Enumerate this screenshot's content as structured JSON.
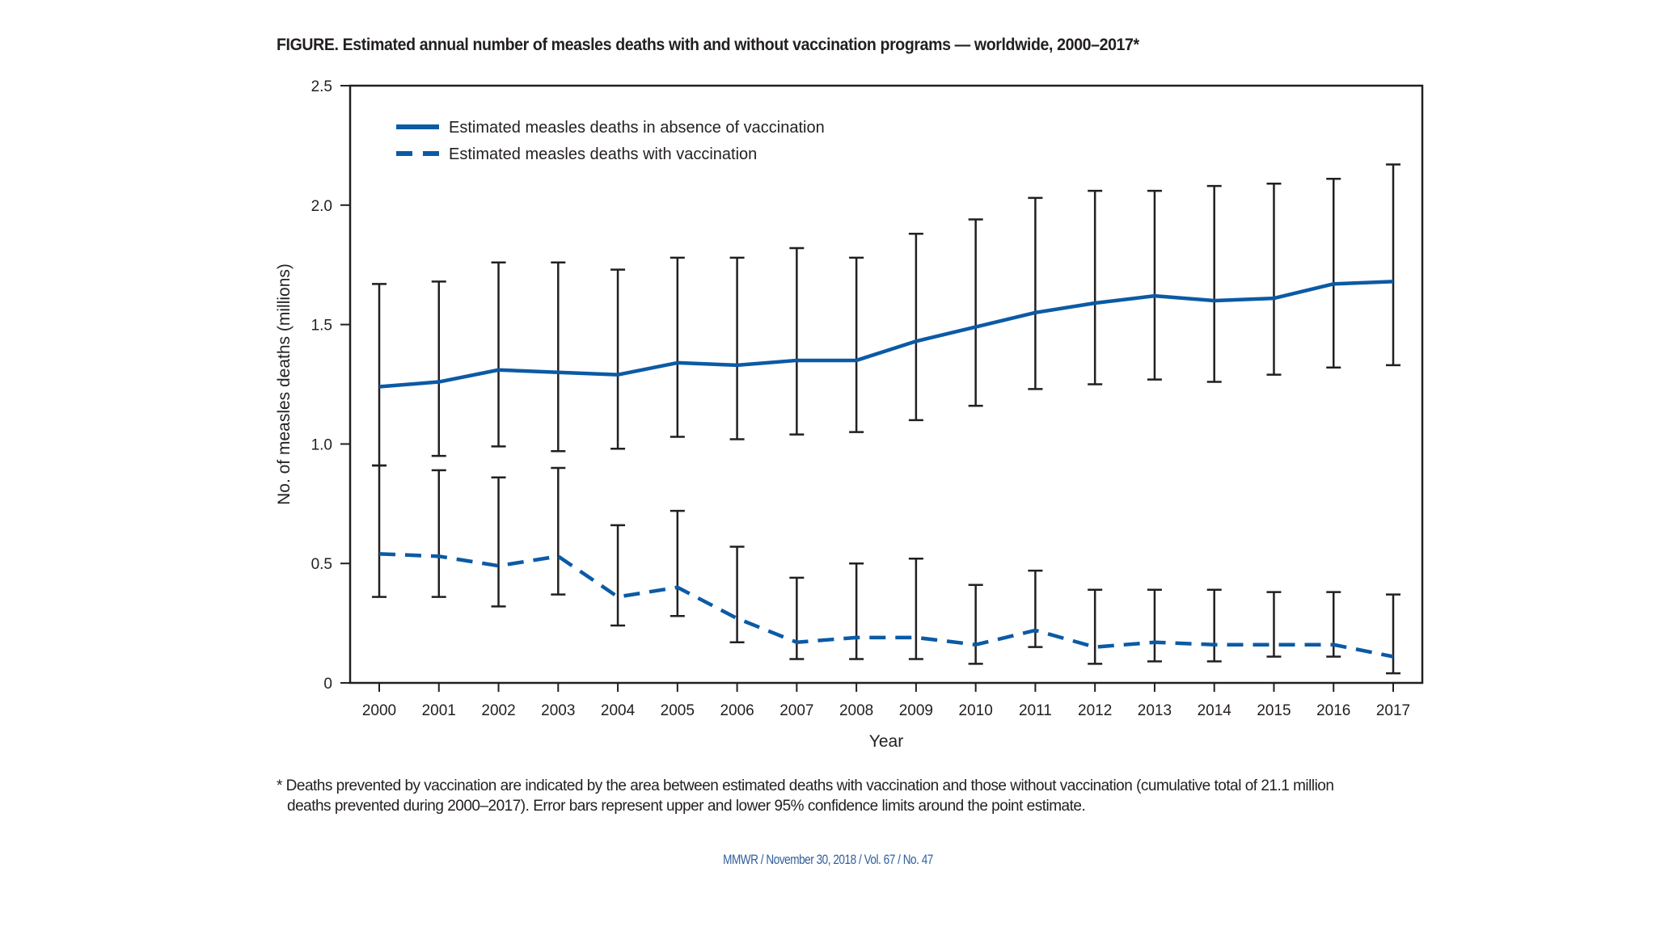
{
  "figure": {
    "title": "FIGURE. Estimated annual number of measles deaths with and without vaccination programs — worldwide, 2000–2017*",
    "footnote_line1": "* Deaths prevented by vaccination are indicated by the area between estimated deaths with vaccination and those without vaccination (cumulative total of 21.1 million",
    "footnote_line2": "deaths prevented during 2000–2017). Error bars represent upper and lower 95% confidence limits around the point estimate.",
    "footer": "MMWR / November 30, 2018 / Vol. 67 / No. 47"
  },
  "colors": {
    "series": "#0b5aa5",
    "axis": "#231f20",
    "errorbar": "#231f20"
  },
  "chart_data": {
    "type": "line",
    "title": "Estimated annual number of measles deaths with and without vaccination programs — worldwide, 2000–2017",
    "xlabel": "Year",
    "ylabel": "No. of measles deaths (millions)",
    "ylim": [
      0,
      2.5
    ],
    "yticks": [
      0,
      0.5,
      1.0,
      1.5,
      2.0,
      2.5
    ],
    "ytick_labels": [
      "0",
      "0.5",
      "1.0",
      "1.5",
      "2.0",
      "2.5"
    ],
    "grid": false,
    "legend_position": "top-left",
    "x": [
      "2000",
      "2001",
      "2002",
      "2003",
      "2004",
      "2005",
      "2006",
      "2007",
      "2008",
      "2009",
      "2010",
      "2011",
      "2012",
      "2013",
      "2014",
      "2015",
      "2016",
      "2017"
    ],
    "series": [
      {
        "name": "Estimated measles deaths in absence of vaccination",
        "style": "solid",
        "values": [
          1.24,
          1.26,
          1.31,
          1.3,
          1.29,
          1.34,
          1.33,
          1.35,
          1.35,
          1.43,
          1.49,
          1.55,
          1.59,
          1.62,
          1.6,
          1.61,
          1.67,
          1.68
        ],
        "upper": [
          1.67,
          1.68,
          1.76,
          1.76,
          1.73,
          1.78,
          1.78,
          1.82,
          1.78,
          1.88,
          1.94,
          2.03,
          2.06,
          2.06,
          2.08,
          2.09,
          2.11,
          2.17
        ],
        "lower": [
          0.91,
          0.95,
          0.99,
          0.97,
          0.98,
          1.03,
          1.02,
          1.04,
          1.05,
          1.1,
          1.16,
          1.23,
          1.25,
          1.27,
          1.26,
          1.29,
          1.32,
          1.33
        ]
      },
      {
        "name": "Estimated measles deaths with vaccination",
        "style": "dashed",
        "values": [
          0.54,
          0.53,
          0.49,
          0.53,
          0.36,
          0.4,
          0.27,
          0.17,
          0.19,
          0.19,
          0.16,
          0.22,
          0.15,
          0.17,
          0.16,
          0.16,
          0.16,
          0.11
        ],
        "upper": [
          0.91,
          0.89,
          0.86,
          0.9,
          0.66,
          0.72,
          0.57,
          0.44,
          0.5,
          0.52,
          0.41,
          0.47,
          0.39,
          0.39,
          0.39,
          0.38,
          0.38,
          0.37
        ],
        "lower": [
          0.36,
          0.36,
          0.32,
          0.37,
          0.24,
          0.28,
          0.17,
          0.1,
          0.1,
          0.1,
          0.08,
          0.15,
          0.08,
          0.09,
          0.09,
          0.11,
          0.11,
          0.04
        ]
      }
    ]
  }
}
